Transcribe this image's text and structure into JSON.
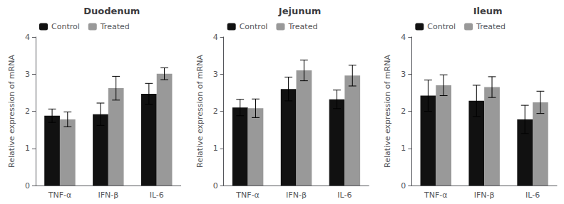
{
  "chart_data": [
    {
      "type": "bar",
      "title": "Duodenum",
      "categories": [
        "TNF-α",
        "IFN-β",
        "IL-6"
      ],
      "series": [
        {
          "name": "Control",
          "color": "#111111",
          "values": [
            1.88,
            1.92,
            2.47
          ],
          "errors": [
            0.18,
            0.3,
            0.28
          ]
        },
        {
          "name": "Treated",
          "color": "#999999",
          "values": [
            1.78,
            2.62,
            3.01
          ],
          "errors": [
            0.2,
            0.32,
            0.16
          ]
        }
      ],
      "ylabel": "Relative expression of mRNA",
      "ylim": [
        0,
        4
      ],
      "yticks": [
        0,
        1,
        2,
        3,
        4
      ],
      "legend": "upper left",
      "grid": false
    },
    {
      "type": "bar",
      "title": "Jejunum",
      "categories": [
        "TNF-α",
        "IFN-β",
        "IL-6"
      ],
      "series": [
        {
          "name": "Control",
          "color": "#111111",
          "values": [
            2.1,
            2.6,
            2.32
          ],
          "errors": [
            0.22,
            0.32,
            0.25
          ]
        },
        {
          "name": "Treated",
          "color": "#999999",
          "values": [
            2.08,
            3.1,
            2.96
          ],
          "errors": [
            0.25,
            0.28,
            0.28
          ]
        }
      ],
      "ylabel": "Relative expression of mRNA",
      "ylim": [
        0,
        4
      ],
      "yticks": [
        0,
        1,
        2,
        3,
        4
      ],
      "legend": "upper left",
      "grid": false
    },
    {
      "type": "bar",
      "title": "Ileum",
      "categories": [
        "TNF-α",
        "IFN-β",
        "IL-6"
      ],
      "series": [
        {
          "name": "Control",
          "color": "#111111",
          "values": [
            2.42,
            2.28,
            1.78
          ],
          "errors": [
            0.42,
            0.42,
            0.38
          ]
        },
        {
          "name": "Treated",
          "color": "#999999",
          "values": [
            2.7,
            2.65,
            2.24
          ],
          "errors": [
            0.28,
            0.28,
            0.3
          ]
        }
      ],
      "ylabel": "Relative expression of mRNA",
      "ylim": [
        0,
        4
      ],
      "yticks": [
        0,
        1,
        2,
        3,
        4
      ],
      "legend": "upper left",
      "grid": false
    }
  ]
}
